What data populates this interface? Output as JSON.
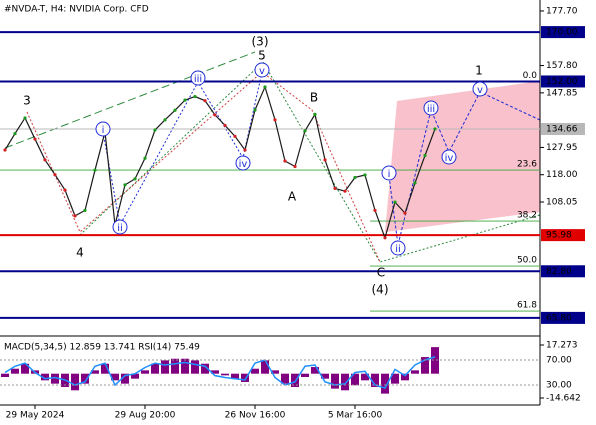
{
  "chart_data": {
    "type": "line",
    "title": "#NVDA-T, H4:  NVIDIA Corp. CFD",
    "categories": [
      null,
      null,
      null,
      "29 May 2024",
      null,
      null,
      null,
      null,
      null,
      null,
      null,
      null,
      null,
      null,
      "29 Aug 20:00",
      null,
      null,
      null,
      null,
      null,
      null,
      null,
      null,
      null,
      null,
      "26 Nov 16:00",
      null,
      null,
      null,
      null,
      null,
      null,
      null,
      null,
      null,
      "5 Mar 16:00",
      null,
      null,
      null,
      null,
      null,
      null,
      null,
      null
    ],
    "series": [
      {
        "color": "#1a1a1a",
        "values": [
          127.0,
          133,
          138.7,
          131,
          123.4,
          118,
          112.4,
          103,
          105,
          119.7,
          133.6,
          99.7,
          114.3,
          116.5,
          124,
          134.3,
          138,
          141.5,
          145.2,
          146.5,
          145,
          139.8,
          136,
          132,
          127.0,
          141.6,
          150,
          138.0,
          123,
          121,
          134,
          140,
          123.4,
          113,
          112,
          117,
          117.9,
          105,
          95,
          108,
          104,
          115,
          125,
          134.7
        ]
      }
    ],
    "ylim": [
      59.2,
      181.7
    ],
    "yticks": [
      {
        "value": 177.7,
        "label": "177.70"
      },
      {
        "value": 157.8,
        "label": "157.80"
      },
      {
        "value": 147.85,
        "label": "147.85"
      },
      {
        "value": 127.95,
        "label": "127.95"
      },
      {
        "value": 118.0,
        "label": "118.00"
      },
      {
        "value": 108.05,
        "label": "108.05"
      }
    ],
    "grid": false,
    "levels": [
      {
        "price": 170,
        "label": "170.00",
        "color": "#00008b"
      },
      {
        "price": 152,
        "label": "152.00",
        "color": "#00008b"
      },
      {
        "price": 134.66,
        "label": "134.66",
        "color": "#b8b8b8"
      },
      {
        "price": 95.98,
        "label": "95.98",
        "color": "#e00000"
      },
      {
        "price": 82.8,
        "label": "82.80",
        "color": "#00008b"
      },
      {
        "price": 65.8,
        "label": "65.80",
        "color": "#00008b"
      }
    ],
    "fib_levels": [
      {
        "price": 152,
        "label": "0.0"
      },
      {
        "price": 119.7,
        "label": "23.6"
      },
      {
        "price": 101.1,
        "label": "38.2"
      },
      {
        "price": 84.7,
        "label": "50.0"
      },
      {
        "price": 68.3,
        "label": "61.8"
      }
    ],
    "wave_labels": [
      {
        "text": "3",
        "color": "#a0522d"
      },
      {
        "text": "4",
        "color": "#a0522d"
      },
      {
        "text": "(3)",
        "color": "#2e8b3e"
      },
      {
        "text": "5",
        "color": "#a0522d"
      },
      {
        "text": "B",
        "color": "#a0522d"
      },
      {
        "text": "A",
        "color": "#a0522d"
      },
      {
        "text": "C",
        "color": "#a0522d"
      },
      {
        "text": "(4)",
        "color": "#2e8b3e"
      },
      {
        "text": "1",
        "color": "#a0522d"
      }
    ],
    "circled_labels": [
      "i",
      "ii",
      "iii",
      "iv",
      "v",
      "i",
      "ii",
      "iii",
      "iv",
      "v"
    ],
    "indicator": {
      "label": "MACD(5,34,5) 12.859 13.741 RSI(14) 75.49",
      "macd_color": "#800080",
      "rsi_color": "#1e90ff",
      "macd_values": [
        -2,
        3,
        6,
        2,
        -4,
        -6,
        -8,
        -10,
        -6,
        2,
        6,
        -4,
        -6,
        -3,
        2,
        6,
        8,
        9,
        9,
        8,
        6,
        2,
        -1,
        -3,
        -5,
        3,
        8,
        2,
        -6,
        -8,
        -2,
        4,
        -3,
        -9,
        -10,
        -7,
        -4,
        -8,
        -12,
        -6,
        -4,
        2,
        10,
        16
      ],
      "rsi_values": [
        50,
        60,
        65,
        50,
        40,
        42,
        38,
        30,
        35,
        60,
        65,
        30,
        45,
        48,
        58,
        65,
        62,
        64,
        66,
        63,
        60,
        45,
        42,
        40,
        38,
        65,
        70,
        42,
        30,
        35,
        60,
        62,
        35,
        30,
        32,
        50,
        52,
        30,
        25,
        55,
        45,
        62,
        70,
        75
      ],
      "ylim": [
        -18.85,
        20.28
      ],
      "yticks": [
        17.273,
        -14.642
      ],
      "rsi_ylim": [
        -2,
        102
      ],
      "rsi_yticks": [
        {
          "value": 70,
          "label": "70.00"
        },
        {
          "value": 30,
          "label": "30.00"
        }
      ]
    }
  }
}
